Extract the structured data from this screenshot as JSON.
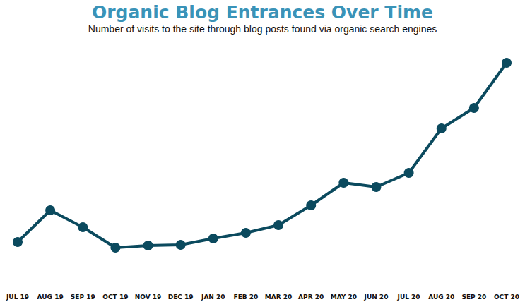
{
  "chart_data": {
    "type": "line",
    "title": "Organic Blog Entrances Over Time",
    "subtitle": "Number of visits to the site through blog posts found via organic search engines",
    "categories": [
      "JUL 19",
      "AUG 19",
      "SEP 19",
      "OCT 19",
      "NOV 19",
      "DEC 19",
      "JAN 20",
      "FEB 20",
      "MAR 20",
      "APR 20",
      "MAY 20",
      "JUN 20",
      "JUL 20",
      "AUG 20",
      "SEP 20",
      "OCT 20"
    ],
    "values": [
      47,
      92,
      68,
      39,
      42,
      43,
      52,
      60,
      71,
      99,
      131,
      125,
      145,
      208,
      237,
      301
    ],
    "color": "#0b4a5e",
    "ylim": [
      0,
      320
    ],
    "yticks": [
      0,
      80,
      160,
      240,
      320
    ],
    "grid": false,
    "tick_labels": "x",
    "marker": "circle",
    "line_style": "solid"
  }
}
